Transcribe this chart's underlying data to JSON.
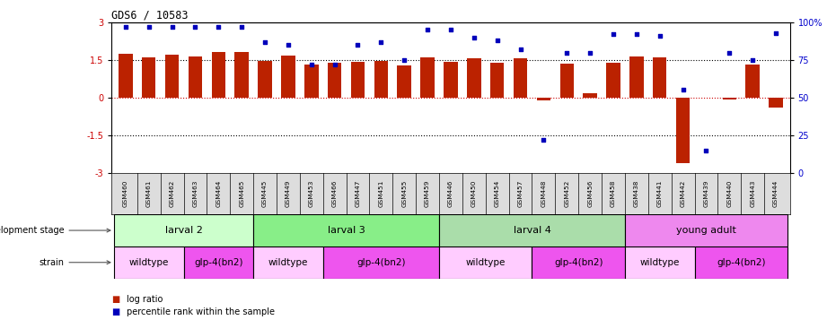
{
  "title": "GDS6 / 10583",
  "samples": [
    "GSM460",
    "GSM461",
    "GSM462",
    "GSM463",
    "GSM464",
    "GSM465",
    "GSM445",
    "GSM449",
    "GSM453",
    "GSM466",
    "GSM447",
    "GSM451",
    "GSM455",
    "GSM459",
    "GSM446",
    "GSM450",
    "GSM454",
    "GSM457",
    "GSM448",
    "GSM452",
    "GSM456",
    "GSM458",
    "GSM438",
    "GSM441",
    "GSM442",
    "GSM439",
    "GSM440",
    "GSM443",
    "GSM444"
  ],
  "log_ratios": [
    1.75,
    1.62,
    1.7,
    1.65,
    1.82,
    1.82,
    1.47,
    1.68,
    1.32,
    1.4,
    1.42,
    1.47,
    1.3,
    1.62,
    1.42,
    1.58,
    1.38,
    1.58,
    -0.12,
    1.35,
    0.18,
    1.4,
    1.65,
    1.62,
    -2.62,
    0.0,
    -0.08,
    1.33,
    -0.38
  ],
  "percentile_ranks": [
    97,
    97,
    97,
    97,
    97,
    97,
    87,
    85,
    72,
    72,
    85,
    87,
    75,
    95,
    95,
    90,
    88,
    82,
    22,
    80,
    80,
    92,
    92,
    91,
    55,
    15,
    80,
    75,
    93
  ],
  "dev_stages": [
    {
      "label": "larval 2",
      "start": 0,
      "end": 6,
      "color": "#ccffcc"
    },
    {
      "label": "larval 3",
      "start": 6,
      "end": 14,
      "color": "#88ee88"
    },
    {
      "label": "larval 4",
      "start": 14,
      "end": 22,
      "color": "#aaddaa"
    },
    {
      "label": "young adult",
      "start": 22,
      "end": 29,
      "color": "#ee88ee"
    }
  ],
  "strains": [
    {
      "label": "wildtype",
      "start": 0,
      "end": 3,
      "color": "#ffccff"
    },
    {
      "label": "glp-4(bn2)",
      "start": 3,
      "end": 6,
      "color": "#ee55ee"
    },
    {
      "label": "wildtype",
      "start": 6,
      "end": 9,
      "color": "#ffccff"
    },
    {
      "label": "glp-4(bn2)",
      "start": 9,
      "end": 14,
      "color": "#ee55ee"
    },
    {
      "label": "wildtype",
      "start": 14,
      "end": 18,
      "color": "#ffccff"
    },
    {
      "label": "glp-4(bn2)",
      "start": 18,
      "end": 22,
      "color": "#ee55ee"
    },
    {
      "label": "wildtype",
      "start": 22,
      "end": 25,
      "color": "#ffccff"
    },
    {
      "label": "glp-4(bn2)",
      "start": 25,
      "end": 29,
      "color": "#ee55ee"
    }
  ],
  "bar_color": "#bb2200",
  "dot_color": "#0000bb",
  "ylim_left": [
    -3,
    3
  ],
  "ylim_right": [
    0,
    100
  ],
  "yticks_left": [
    -3,
    -1.5,
    0,
    1.5,
    3
  ],
  "yticks_right": [
    0,
    25,
    50,
    75,
    100
  ],
  "yticklabels_right": [
    "0",
    "25",
    "50",
    "75",
    "100%"
  ],
  "tick_label_bg": "#dddddd"
}
